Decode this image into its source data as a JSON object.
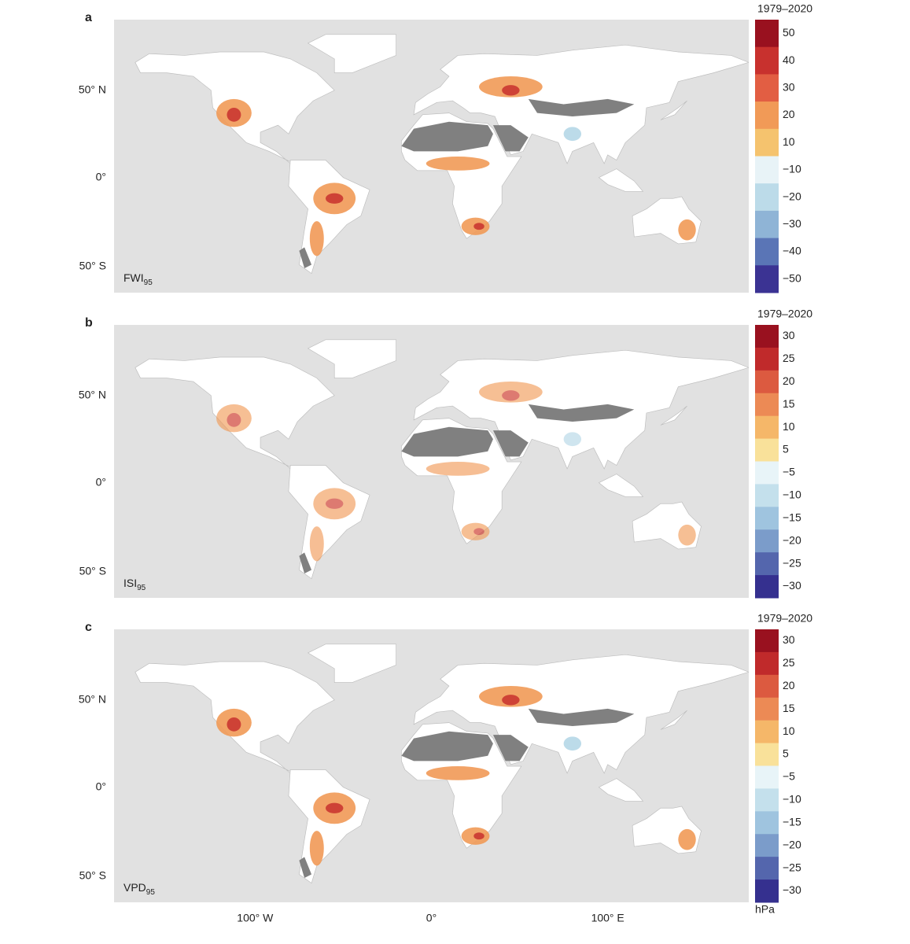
{
  "panels": [
    {
      "letter": "a",
      "index_label": {
        "name": "FWI",
        "subscript": "95"
      },
      "period": "1979–2020",
      "colorbar": {
        "labels": [
          "50",
          "40",
          "30",
          "20",
          "10",
          "−10",
          "−20",
          "−30",
          "−40",
          "−50"
        ],
        "colors": [
          "#99111f",
          "#c8312e",
          "#e25e43",
          "#f19a57",
          "#f5c36e",
          "#f8e29a",
          "#e8f3f7",
          "#bcdbe9",
          "#8fb4d6",
          "#5a75b6",
          "#3b3393"
        ]
      }
    },
    {
      "letter": "b",
      "index_label": {
        "name": "ISI",
        "subscript": "95"
      },
      "period": "1979–2020",
      "colorbar": {
        "labels": [
          "30",
          "25",
          "20",
          "15",
          "10",
          "5",
          "−5",
          "−10",
          "−15",
          "−20",
          "−25",
          "−30"
        ],
        "colors": [
          "#99111f",
          "#c02a2b",
          "#dc5a40",
          "#ec8a55",
          "#f5b769",
          "#f9e19a",
          "#e8f4f8",
          "#c4e0ec",
          "#9fc4df",
          "#7b9cca",
          "#5466ad",
          "#35308f"
        ]
      }
    },
    {
      "letter": "c",
      "index_label": {
        "name": "VPD",
        "subscript": "95"
      },
      "period": "1979–2020",
      "colorbar": {
        "labels": [
          "30",
          "25",
          "20",
          "15",
          "10",
          "5",
          "−5",
          "−10",
          "−15",
          "−20",
          "−25",
          "−30"
        ],
        "colors": [
          "#99111f",
          "#c02a2b",
          "#dc5a40",
          "#ec8a55",
          "#f5b769",
          "#f9e19a",
          "#e8f4f8",
          "#c4e0ec",
          "#9fc4df",
          "#7b9cca",
          "#5466ad",
          "#35308f"
        ]
      }
    }
  ],
  "latitude_labels": [
    "50° N",
    "0°",
    "50° S"
  ],
  "longitude_labels": [
    "100° W",
    "0°",
    "100° E"
  ],
  "unit": "hPa"
}
